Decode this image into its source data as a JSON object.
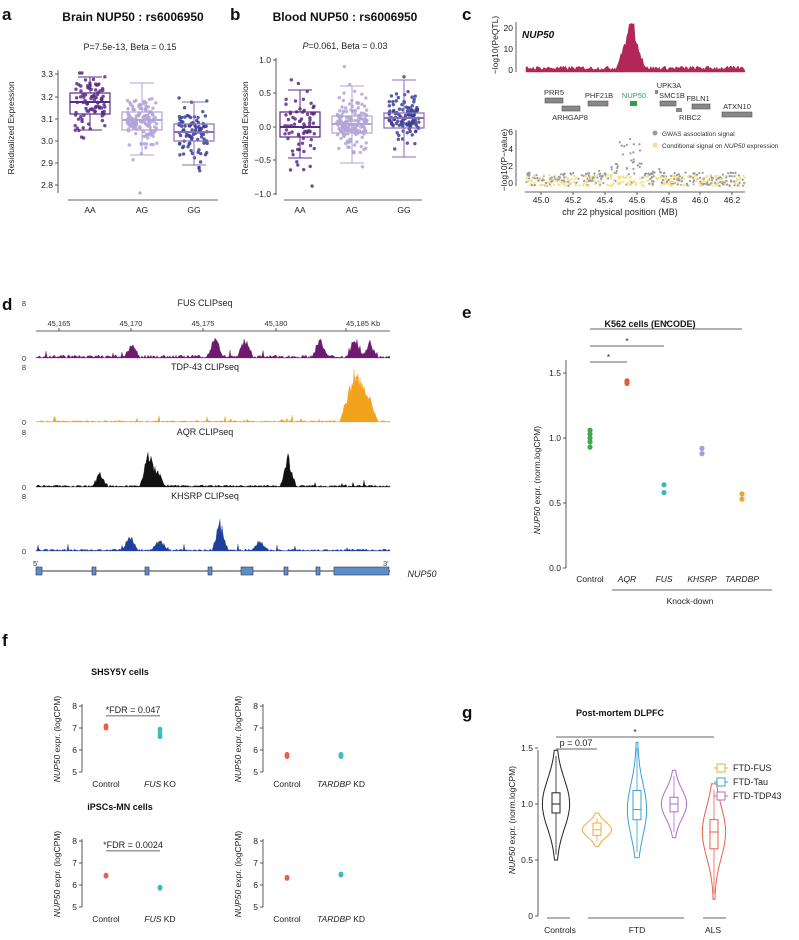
{
  "colors": {
    "purple_dark": "#5b2a86",
    "purple_mid": "#8b6bb8",
    "purple_light": "#b3a3d6",
    "navy": "#3a3f93",
    "crimson": "#b22757",
    "gwas_grey": "#9a9a9a",
    "cond_yellow": "#f2e08a",
    "gene_green": "#2e9e4d",
    "fus_track": "#6e1a6e",
    "tdp_track": "#f2a21b",
    "aqr_track": "#111111",
    "khsrp_track": "#1f3f9c",
    "gene_blue": "#5b8ecb",
    "ctrl_green": "#3ea84f",
    "aqr_red": "#e65a3a",
    "fus_teal": "#3cb8b0",
    "khsrp_lav": "#a89be0",
    "tardbp_orange": "#f2a03c",
    "ko_red": "#e8604c",
    "ko_teal": "#3cbcc0",
    "vio_black": "#222222",
    "vio_orange": "#f2a93b",
    "vio_blue": "#3aa0d8",
    "vio_purple": "#b06cc8",
    "vio_red": "#e8604c"
  },
  "panel_a": {
    "letter": "a",
    "title": "Brain NUP50 : rs6006950",
    "stat": "P=7.5e-13, Beta = 0.15",
    "ylabel": "Residualized Expression",
    "yticks": [
      "3.3",
      "3.2",
      "3.1",
      "3.0",
      "2.9",
      "2.8"
    ],
    "groups": [
      "AA",
      "AG",
      "GG"
    ]
  },
  "panel_b": {
    "letter": "b",
    "title": "Blood NUP50 : rs6006950",
    "stat_p": "P",
    "stat_rest": "=0.061, Beta = 0.03",
    "ylabel": "Residualized Expression",
    "yticks": [
      "1.0",
      "0.5",
      "0.0",
      "−0.5",
      "−1.0"
    ],
    "groups": [
      "AA",
      "AG",
      "GG"
    ]
  },
  "panel_c": {
    "letter": "c",
    "gene_label": "NUP50",
    "top_ylabel": "−log10(PeQTL)",
    "top_yticks": [
      "20",
      "10",
      "0"
    ],
    "genes": [
      "PRR5",
      "ARHGAP8",
      "PHF21B",
      "NUP50",
      "UPK3A",
      "SMC1B",
      "RIBC2",
      "FBLN1",
      "ATXN10"
    ],
    "bottom_ylabel": "−log10(P−value)",
    "bottom_yticks": [
      "6",
      "4",
      "2",
      "0"
    ],
    "legend_gwas": "GWAS association signal",
    "legend_cond_pre": "Conditional signal on ",
    "legend_cond_gene": "NUP50",
    "legend_cond_post": " expression",
    "xticks": [
      "45.0",
      "45.2",
      "45.4",
      "45.6",
      "45.8",
      "46.0",
      "46.2"
    ],
    "xlabel": "chr 22 physical position (MB)"
  },
  "panel_d": {
    "letter": "d",
    "coords": [
      "45,165",
      "45,170",
      "45,175",
      "45,180",
      "45,185 Kb"
    ],
    "tracks": [
      {
        "name": "FUS CLIPseq",
        "max": "8",
        "min": "0"
      },
      {
        "name": "TDP-43 CLIPseq",
        "max": "8",
        "min": "0"
      },
      {
        "name": "AQR CLIPseq",
        "max": "8",
        "min": "0"
      },
      {
        "name": "KHSRP CLIPseq",
        "max": "8",
        "min": "0"
      }
    ],
    "five_prime": "5'",
    "three_prime": "3'",
    "gene": "NUP50"
  },
  "panel_e": {
    "letter": "e",
    "title": "K562 cells (ENCODE)",
    "ylabel_gene": "NUP50",
    "ylabel_rest": " expr. (norm.logCPM)",
    "yticks": [
      "1.5",
      "1.0",
      "0.5",
      "0.0"
    ],
    "groups": [
      "Control",
      "AQR",
      "FUS",
      "KHSRP",
      "TARDBP"
    ],
    "knockdown_label": "Knock-down",
    "star": "*",
    "chart_data": {
      "type": "scatter",
      "categories": [
        "Control",
        "AQR",
        "FUS",
        "KHSRP",
        "TARDBP"
      ],
      "series": [
        {
          "name": "Control",
          "values": [
            0.93,
            0.97,
            1.0,
            1.03,
            1.06
          ]
        },
        {
          "name": "AQR",
          "values": [
            1.42,
            1.44
          ]
        },
        {
          "name": "FUS",
          "values": [
            0.58,
            0.64
          ]
        },
        {
          "name": "KHSRP",
          "values": [
            0.88,
            0.92
          ]
        },
        {
          "name": "TARDBP",
          "values": [
            0.53,
            0.57
          ]
        }
      ],
      "ylim": [
        0.0,
        1.6
      ]
    }
  },
  "panel_f": {
    "letter": "f",
    "title_top": "SHSY5Y cells",
    "title_bottom": "iPSCs-MN cells",
    "fdr_top": "*FDR = 0.047",
    "fdr_bottom": "*FDR = 0.0024",
    "ylabel_gene": "NUP50",
    "ylabel_rest": " expr. (logCPM)",
    "yticks": [
      "8",
      "7",
      "6",
      "5"
    ],
    "control": "Control",
    "fus_gene": "FUS",
    "ko": " KO",
    "kd": " KD",
    "tardbp_gene": "TARDBP"
  },
  "panel_g": {
    "letter": "g",
    "title": "Post-mortem DLPFC",
    "pval": "p = 0.07",
    "star": "*",
    "ylabel_gene": "NUP50",
    "ylabel_rest": " expr. (norm.logCPM)",
    "yticks": [
      "1.5",
      "1.0",
      "0.5",
      "0"
    ],
    "groups": [
      "Controls",
      "FTD",
      "ALS"
    ],
    "legend": [
      "FTD-FUS",
      "FTD-Tau",
      "FTD-TDP43"
    ]
  }
}
